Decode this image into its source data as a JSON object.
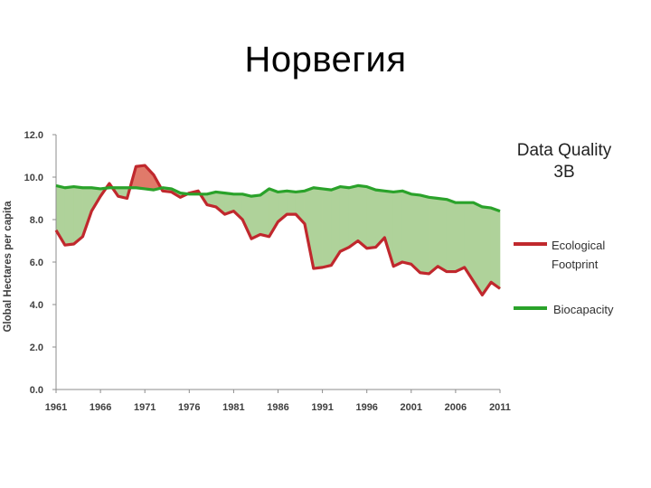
{
  "slide": {
    "title": "Норвегия"
  },
  "chart_data": {
    "type": "line",
    "title": "",
    "xlabel": "",
    "ylabel": "Global Hectares per capita",
    "xlim": [
      1961,
      2011
    ],
    "ylim": [
      0,
      12
    ],
    "yticks": [
      "0.0",
      "2.0",
      "4.0",
      "6.0",
      "8.0",
      "10.0",
      "12.0"
    ],
    "xticks": [
      "1961",
      "1966",
      "1971",
      "1976",
      "1981",
      "1986",
      "1991",
      "1996",
      "2001",
      "2006",
      "2011"
    ],
    "annotation": {
      "line1": "Data Quality",
      "line2": "3B"
    },
    "legend": [
      {
        "label_line1": "Ecological",
        "label_line2": "Footprint",
        "color": "#c0282d"
      },
      {
        "label_line1": "Biocapacity",
        "label_line2": "",
        "color": "#2aa22a"
      }
    ],
    "fill": {
      "deficit_color": "#e07a6a",
      "reserve_color": "#afd29a"
    },
    "x": [
      1961,
      1962,
      1963,
      1964,
      1965,
      1966,
      1967,
      1968,
      1969,
      1970,
      1971,
      1972,
      1973,
      1974,
      1975,
      1976,
      1977,
      1978,
      1979,
      1980,
      1981,
      1982,
      1983,
      1984,
      1985,
      1986,
      1987,
      1988,
      1989,
      1990,
      1991,
      1992,
      1993,
      1994,
      1995,
      1996,
      1997,
      1998,
      1999,
      2000,
      2001,
      2002,
      2003,
      2004,
      2005,
      2006,
      2007,
      2008,
      2009,
      2010,
      2011
    ],
    "series": [
      {
        "name": "Ecological Footprint",
        "color": "#c0282d",
        "values": [
          7.5,
          6.8,
          6.85,
          7.2,
          8.4,
          9.1,
          9.7,
          9.1,
          9.0,
          10.5,
          10.55,
          10.1,
          9.35,
          9.3,
          9.05,
          9.25,
          9.35,
          8.7,
          8.6,
          8.25,
          8.4,
          8.0,
          7.1,
          7.3,
          7.2,
          7.9,
          8.25,
          8.25,
          7.8,
          5.7,
          5.75,
          5.85,
          6.5,
          6.7,
          7.0,
          6.65,
          6.7,
          7.15,
          5.8,
          6.0,
          5.9,
          5.5,
          5.45,
          5.8,
          5.55,
          5.55,
          5.75,
          5.1,
          4.45,
          5.05,
          4.75
        ]
      },
      {
        "name": "Biocapacity",
        "color": "#2aa22a",
        "values": [
          9.6,
          9.5,
          9.55,
          9.5,
          9.5,
          9.45,
          9.5,
          9.5,
          9.5,
          9.5,
          9.45,
          9.4,
          9.5,
          9.45,
          9.25,
          9.2,
          9.2,
          9.2,
          9.3,
          9.25,
          9.2,
          9.2,
          9.1,
          9.15,
          9.45,
          9.3,
          9.35,
          9.3,
          9.35,
          9.5,
          9.45,
          9.4,
          9.55,
          9.5,
          9.6,
          9.55,
          9.4,
          9.35,
          9.3,
          9.35,
          9.2,
          9.15,
          9.05,
          9.0,
          8.95,
          8.8,
          8.8,
          8.8,
          8.6,
          8.55,
          8.4
        ]
      }
    ]
  }
}
